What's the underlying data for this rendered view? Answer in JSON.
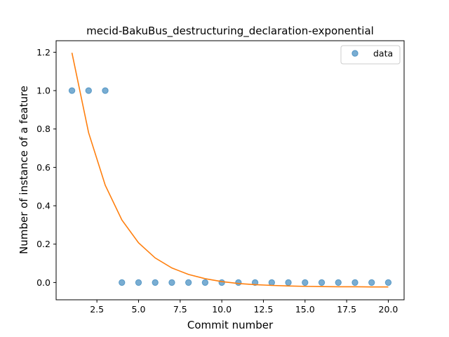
{
  "chart_data": {
    "type": "scatter",
    "title": "mecid-BakuBus_destructuring_declaration-exponential",
    "xlabel": "Commit number",
    "ylabel": "Number of instance of a feature",
    "xlim": [
      0.05,
      20.95
    ],
    "ylim": [
      -0.09,
      1.26
    ],
    "xticks": [
      2.5,
      5.0,
      7.5,
      10.0,
      12.5,
      15.0,
      17.5,
      20.0
    ],
    "xtick_labels": [
      "2.5",
      "5.0",
      "7.5",
      "10.0",
      "12.5",
      "15.0",
      "17.5",
      "20.0"
    ],
    "yticks": [
      0.0,
      0.2,
      0.4,
      0.6,
      0.8,
      1.0,
      1.2
    ],
    "ytick_labels": [
      "0.0",
      "0.2",
      "0.4",
      "0.6",
      "0.8",
      "1.0",
      "1.2"
    ],
    "grid": false,
    "legend_position": "top-right",
    "colors": {
      "data": "#1f77b4",
      "fit": "#ff7f0e"
    },
    "series": [
      {
        "name": "data",
        "kind": "scatter",
        "x": [
          1,
          2,
          3,
          4,
          5,
          6,
          7,
          8,
          9,
          10,
          11,
          12,
          13,
          14,
          15,
          16,
          17,
          18,
          19,
          20
        ],
        "y": [
          1,
          1,
          1,
          0,
          0,
          0,
          0,
          0,
          0,
          0,
          0,
          0,
          0,
          0,
          0,
          0,
          0,
          0,
          0,
          0
        ]
      },
      {
        "kind": "line",
        "x": [
          1,
          2,
          3,
          4,
          5,
          6,
          7,
          8,
          9,
          10,
          11,
          12,
          13,
          14,
          15,
          16,
          17,
          18,
          19,
          20
        ],
        "y": [
          1.197,
          0.781,
          0.507,
          0.326,
          0.207,
          0.128,
          0.076,
          0.042,
          0.02,
          0.005,
          -0.005,
          -0.011,
          -0.015,
          -0.018,
          -0.02,
          -0.021,
          -0.022,
          -0.022,
          -0.023,
          -0.023
        ]
      }
    ]
  }
}
